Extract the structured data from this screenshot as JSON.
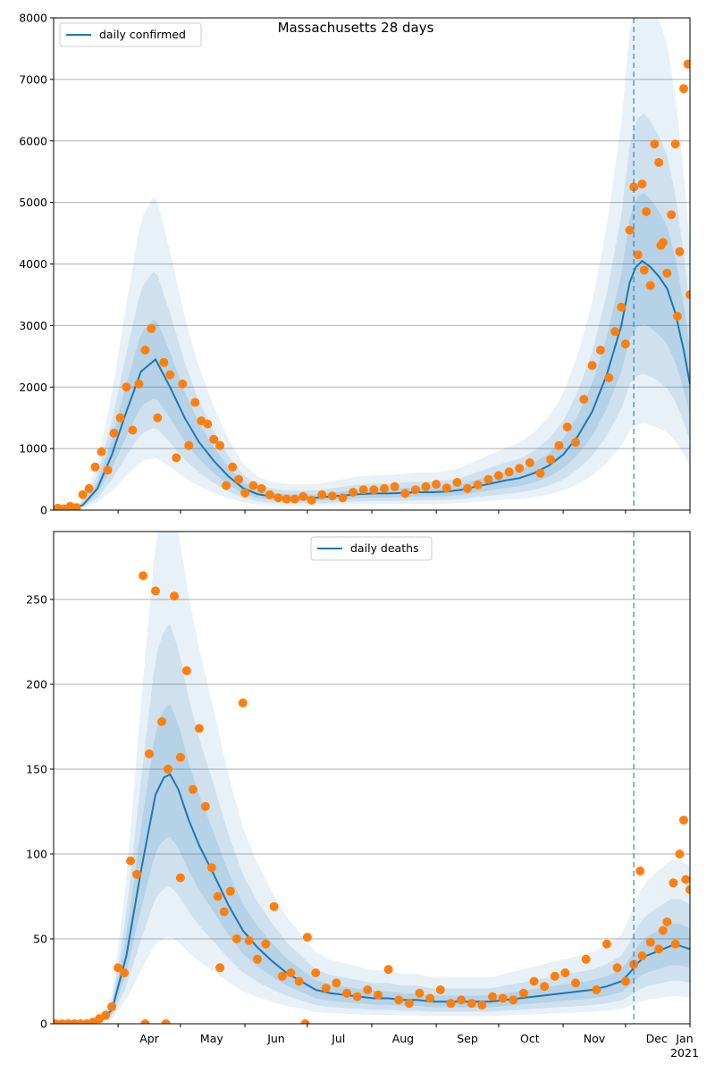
{
  "title": "Massachusetts 28 days",
  "year_label": "2021",
  "colors": {
    "line": "#1f77b4",
    "points": "#ff7f0e",
    "band": "#1f77b4",
    "grid": "#b0b0b0",
    "vline": "#1f77b4"
  },
  "chart_data": [
    {
      "type": "line",
      "title": "Massachusetts 28 days",
      "legend": "daily confirmed",
      "legend_position": "top-left",
      "x_range": [
        "2020-03-01",
        "2021-01-01"
      ],
      "ylim": [
        0,
        8000
      ],
      "yticks": [
        0,
        1000,
        2000,
        3000,
        4000,
        5000,
        6000,
        7000,
        8000
      ],
      "grid": "horizontal",
      "vertical_line_date": "2020-12-05",
      "series": [
        {
          "name": "daily confirmed",
          "dates": [
            "2020-03-01",
            "2020-03-08",
            "2020-03-15",
            "2020-03-22",
            "2020-03-29",
            "2020-04-05",
            "2020-04-12",
            "2020-04-19",
            "2020-04-26",
            "2020-05-03",
            "2020-05-10",
            "2020-05-17",
            "2020-05-24",
            "2020-05-31",
            "2020-06-07",
            "2020-06-14",
            "2020-06-21",
            "2020-06-28",
            "2020-07-05",
            "2020-07-12",
            "2020-07-19",
            "2020-07-26",
            "2020-08-02",
            "2020-08-09",
            "2020-08-16",
            "2020-08-23",
            "2020-08-30",
            "2020-09-06",
            "2020-09-13",
            "2020-09-20",
            "2020-09-27",
            "2020-10-04",
            "2020-10-11",
            "2020-10-18",
            "2020-10-25",
            "2020-11-01",
            "2020-11-08",
            "2020-11-15",
            "2020-11-22",
            "2020-11-29",
            "2020-12-03",
            "2020-12-06",
            "2020-12-09",
            "2020-12-13",
            "2020-12-17",
            "2020-12-21",
            "2020-12-25",
            "2020-12-29",
            "2021-01-01"
          ],
          "values": [
            10,
            20,
            80,
            350,
            900,
            1600,
            2250,
            2450,
            2000,
            1500,
            1100,
            800,
            550,
            360,
            260,
            220,
            200,
            200,
            200,
            220,
            240,
            260,
            270,
            270,
            280,
            290,
            290,
            300,
            330,
            380,
            430,
            480,
            520,
            600,
            720,
            900,
            1200,
            1600,
            2200,
            3000,
            3700,
            3950,
            4050,
            3950,
            3800,
            3600,
            3200,
            2600,
            2050
          ]
        }
      ],
      "scatter": {
        "dates": [
          "2020-03-03",
          "2020-03-06",
          "2020-03-09",
          "2020-03-12",
          "2020-03-15",
          "2020-03-18",
          "2020-03-21",
          "2020-03-24",
          "2020-03-27",
          "2020-03-30",
          "2020-04-02",
          "2020-04-05",
          "2020-04-08",
          "2020-04-11",
          "2020-04-14",
          "2020-04-17",
          "2020-04-20",
          "2020-04-23",
          "2020-04-26",
          "2020-04-29",
          "2020-05-02",
          "2020-05-05",
          "2020-05-08",
          "2020-05-11",
          "2020-05-14",
          "2020-05-17",
          "2020-05-20",
          "2020-05-23",
          "2020-05-26",
          "2020-05-29",
          "2020-06-01",
          "2020-06-05",
          "2020-06-09",
          "2020-06-13",
          "2020-06-17",
          "2020-06-21",
          "2020-06-25",
          "2020-06-29",
          "2020-07-03",
          "2020-07-08",
          "2020-07-13",
          "2020-07-18",
          "2020-07-23",
          "2020-07-28",
          "2020-08-02",
          "2020-08-07",
          "2020-08-12",
          "2020-08-17",
          "2020-08-22",
          "2020-08-27",
          "2020-09-01",
          "2020-09-06",
          "2020-09-11",
          "2020-09-16",
          "2020-09-21",
          "2020-09-26",
          "2020-10-01",
          "2020-10-06",
          "2020-10-11",
          "2020-10-16",
          "2020-10-21",
          "2020-10-26",
          "2020-10-30",
          "2020-11-03",
          "2020-11-07",
          "2020-11-11",
          "2020-11-15",
          "2020-11-19",
          "2020-11-23",
          "2020-11-26",
          "2020-11-29",
          "2020-12-01",
          "2020-12-03",
          "2020-12-05",
          "2020-12-07",
          "2020-12-09",
          "2020-12-11",
          "2020-12-13",
          "2020-12-15",
          "2020-12-17",
          "2020-12-19",
          "2020-12-21",
          "2020-12-23",
          "2020-12-25",
          "2020-12-27",
          "2020-12-29",
          "2020-12-31",
          "2021-01-01",
          "2020-12-26",
          "2020-12-18",
          "2020-12-10"
        ],
        "values": [
          30,
          20,
          60,
          40,
          250,
          350,
          700,
          950,
          650,
          1250,
          1500,
          2000,
          1300,
          2050,
          2600,
          2950,
          1500,
          2400,
          2200,
          850,
          2050,
          1050,
          1750,
          1450,
          1400,
          1150,
          1050,
          400,
          700,
          500,
          280,
          400,
          350,
          250,
          200,
          180,
          180,
          220,
          160,
          250,
          230,
          200,
          290,
          330,
          330,
          350,
          380,
          270,
          330,
          380,
          420,
          360,
          450,
          350,
          410,
          500,
          560,
          620,
          680,
          770,
          600,
          820,
          1050,
          1350,
          1100,
          1800,
          2350,
          2600,
          2150,
          2900,
          3300,
          2700,
          4550,
          5250,
          4150,
          5300,
          4850,
          3650,
          5950,
          5650,
          4350,
          3850,
          4800,
          5950,
          4200,
          6850,
          7250,
          3500,
          3150,
          4300,
          3900
        ]
      }
    },
    {
      "type": "line",
      "legend": "daily deaths",
      "legend_position": "top-center",
      "x_range": [
        "2020-03-01",
        "2021-01-01"
      ],
      "ylim": [
        0,
        290
      ],
      "yticks": [
        0,
        50,
        100,
        150,
        200,
        250
      ],
      "xticks": [
        "Apr",
        "May",
        "Jun",
        "Jul",
        "Aug",
        "Sep",
        "Oct",
        "Nov",
        "Dec",
        "Jan"
      ],
      "grid": "horizontal",
      "vertical_line_date": "2020-12-05",
      "series": [
        {
          "name": "daily deaths",
          "dates": [
            "2020-03-01",
            "2020-03-15",
            "2020-03-22",
            "2020-03-29",
            "2020-04-05",
            "2020-04-12",
            "2020-04-19",
            "2020-04-23",
            "2020-04-26",
            "2020-04-30",
            "2020-05-05",
            "2020-05-10",
            "2020-05-17",
            "2020-05-24",
            "2020-05-31",
            "2020-06-07",
            "2020-06-14",
            "2020-06-21",
            "2020-06-28",
            "2020-07-05",
            "2020-07-12",
            "2020-07-19",
            "2020-07-26",
            "2020-08-02",
            "2020-08-09",
            "2020-08-16",
            "2020-08-23",
            "2020-08-30",
            "2020-09-06",
            "2020-09-13",
            "2020-09-20",
            "2020-09-27",
            "2020-10-04",
            "2020-10-11",
            "2020-10-18",
            "2020-10-25",
            "2020-11-01",
            "2020-11-08",
            "2020-11-15",
            "2020-11-22",
            "2020-11-29",
            "2020-12-03",
            "2020-12-07",
            "2020-12-11",
            "2020-12-15",
            "2020-12-19",
            "2020-12-23",
            "2020-12-27",
            "2021-01-01"
          ],
          "values": [
            0,
            0,
            1,
            8,
            40,
            90,
            135,
            145,
            147,
            138,
            120,
            105,
            88,
            70,
            55,
            45,
            37,
            30,
            25,
            20,
            18,
            17,
            16,
            15,
            15,
            14,
            14,
            13,
            13,
            13,
            13,
            13,
            14,
            15,
            16,
            17,
            18,
            19,
            20,
            22,
            25,
            30,
            36,
            40,
            42,
            44,
            46,
            46,
            44
          ]
        }
      ],
      "scatter": {
        "dates": [
          "2020-03-02",
          "2020-03-05",
          "2020-03-08",
          "2020-03-11",
          "2020-03-14",
          "2020-03-17",
          "2020-03-20",
          "2020-03-23",
          "2020-03-26",
          "2020-03-29",
          "2020-04-01",
          "2020-04-04",
          "2020-04-07",
          "2020-04-10",
          "2020-04-13",
          "2020-04-16",
          "2020-04-19",
          "2020-04-22",
          "2020-04-25",
          "2020-04-28",
          "2020-05-01",
          "2020-05-04",
          "2020-05-07",
          "2020-05-10",
          "2020-05-13",
          "2020-05-16",
          "2020-05-19",
          "2020-05-22",
          "2020-05-25",
          "2020-05-28",
          "2020-05-31",
          "2020-06-03",
          "2020-06-07",
          "2020-06-11",
          "2020-06-15",
          "2020-06-19",
          "2020-06-23",
          "2020-06-27",
          "2020-07-01",
          "2020-07-05",
          "2020-07-10",
          "2020-07-15",
          "2020-07-20",
          "2020-07-25",
          "2020-07-30",
          "2020-08-04",
          "2020-08-09",
          "2020-08-14",
          "2020-08-19",
          "2020-08-24",
          "2020-08-29",
          "2020-09-03",
          "2020-09-08",
          "2020-09-13",
          "2020-09-18",
          "2020-09-23",
          "2020-09-28",
          "2020-10-03",
          "2020-10-08",
          "2020-10-13",
          "2020-10-18",
          "2020-10-23",
          "2020-10-28",
          "2020-11-02",
          "2020-11-07",
          "2020-11-12",
          "2020-11-17",
          "2020-11-22",
          "2020-11-27",
          "2020-12-01",
          "2020-12-05",
          "2020-12-09",
          "2020-12-13",
          "2020-12-17",
          "2020-12-21",
          "2020-12-24",
          "2020-12-27",
          "2020-12-30",
          "2021-01-01",
          "2020-04-14",
          "2020-04-24",
          "2020-05-01",
          "2020-05-20",
          "2020-06-30",
          "2020-12-29",
          "2020-12-25",
          "2020-12-19",
          "2020-12-08"
        ],
        "values": [
          0,
          0,
          0,
          0,
          0,
          0,
          1,
          3,
          5,
          10,
          33,
          30,
          96,
          88,
          264,
          159,
          255,
          178,
          150,
          252,
          157,
          208,
          138,
          174,
          128,
          92,
          75,
          66,
          78,
          50,
          189,
          49,
          38,
          47,
          69,
          28,
          30,
          25,
          51,
          30,
          21,
          24,
          18,
          16,
          20,
          17,
          32,
          14,
          12,
          18,
          15,
          20,
          12,
          14,
          12,
          11,
          16,
          15,
          14,
          18,
          25,
          22,
          28,
          30,
          24,
          38,
          20,
          47,
          33,
          25,
          35,
          40,
          48,
          44,
          60,
          83,
          100,
          85,
          79,
          0,
          0,
          86,
          33,
          0,
          120,
          47,
          55,
          90
        ]
      }
    }
  ]
}
